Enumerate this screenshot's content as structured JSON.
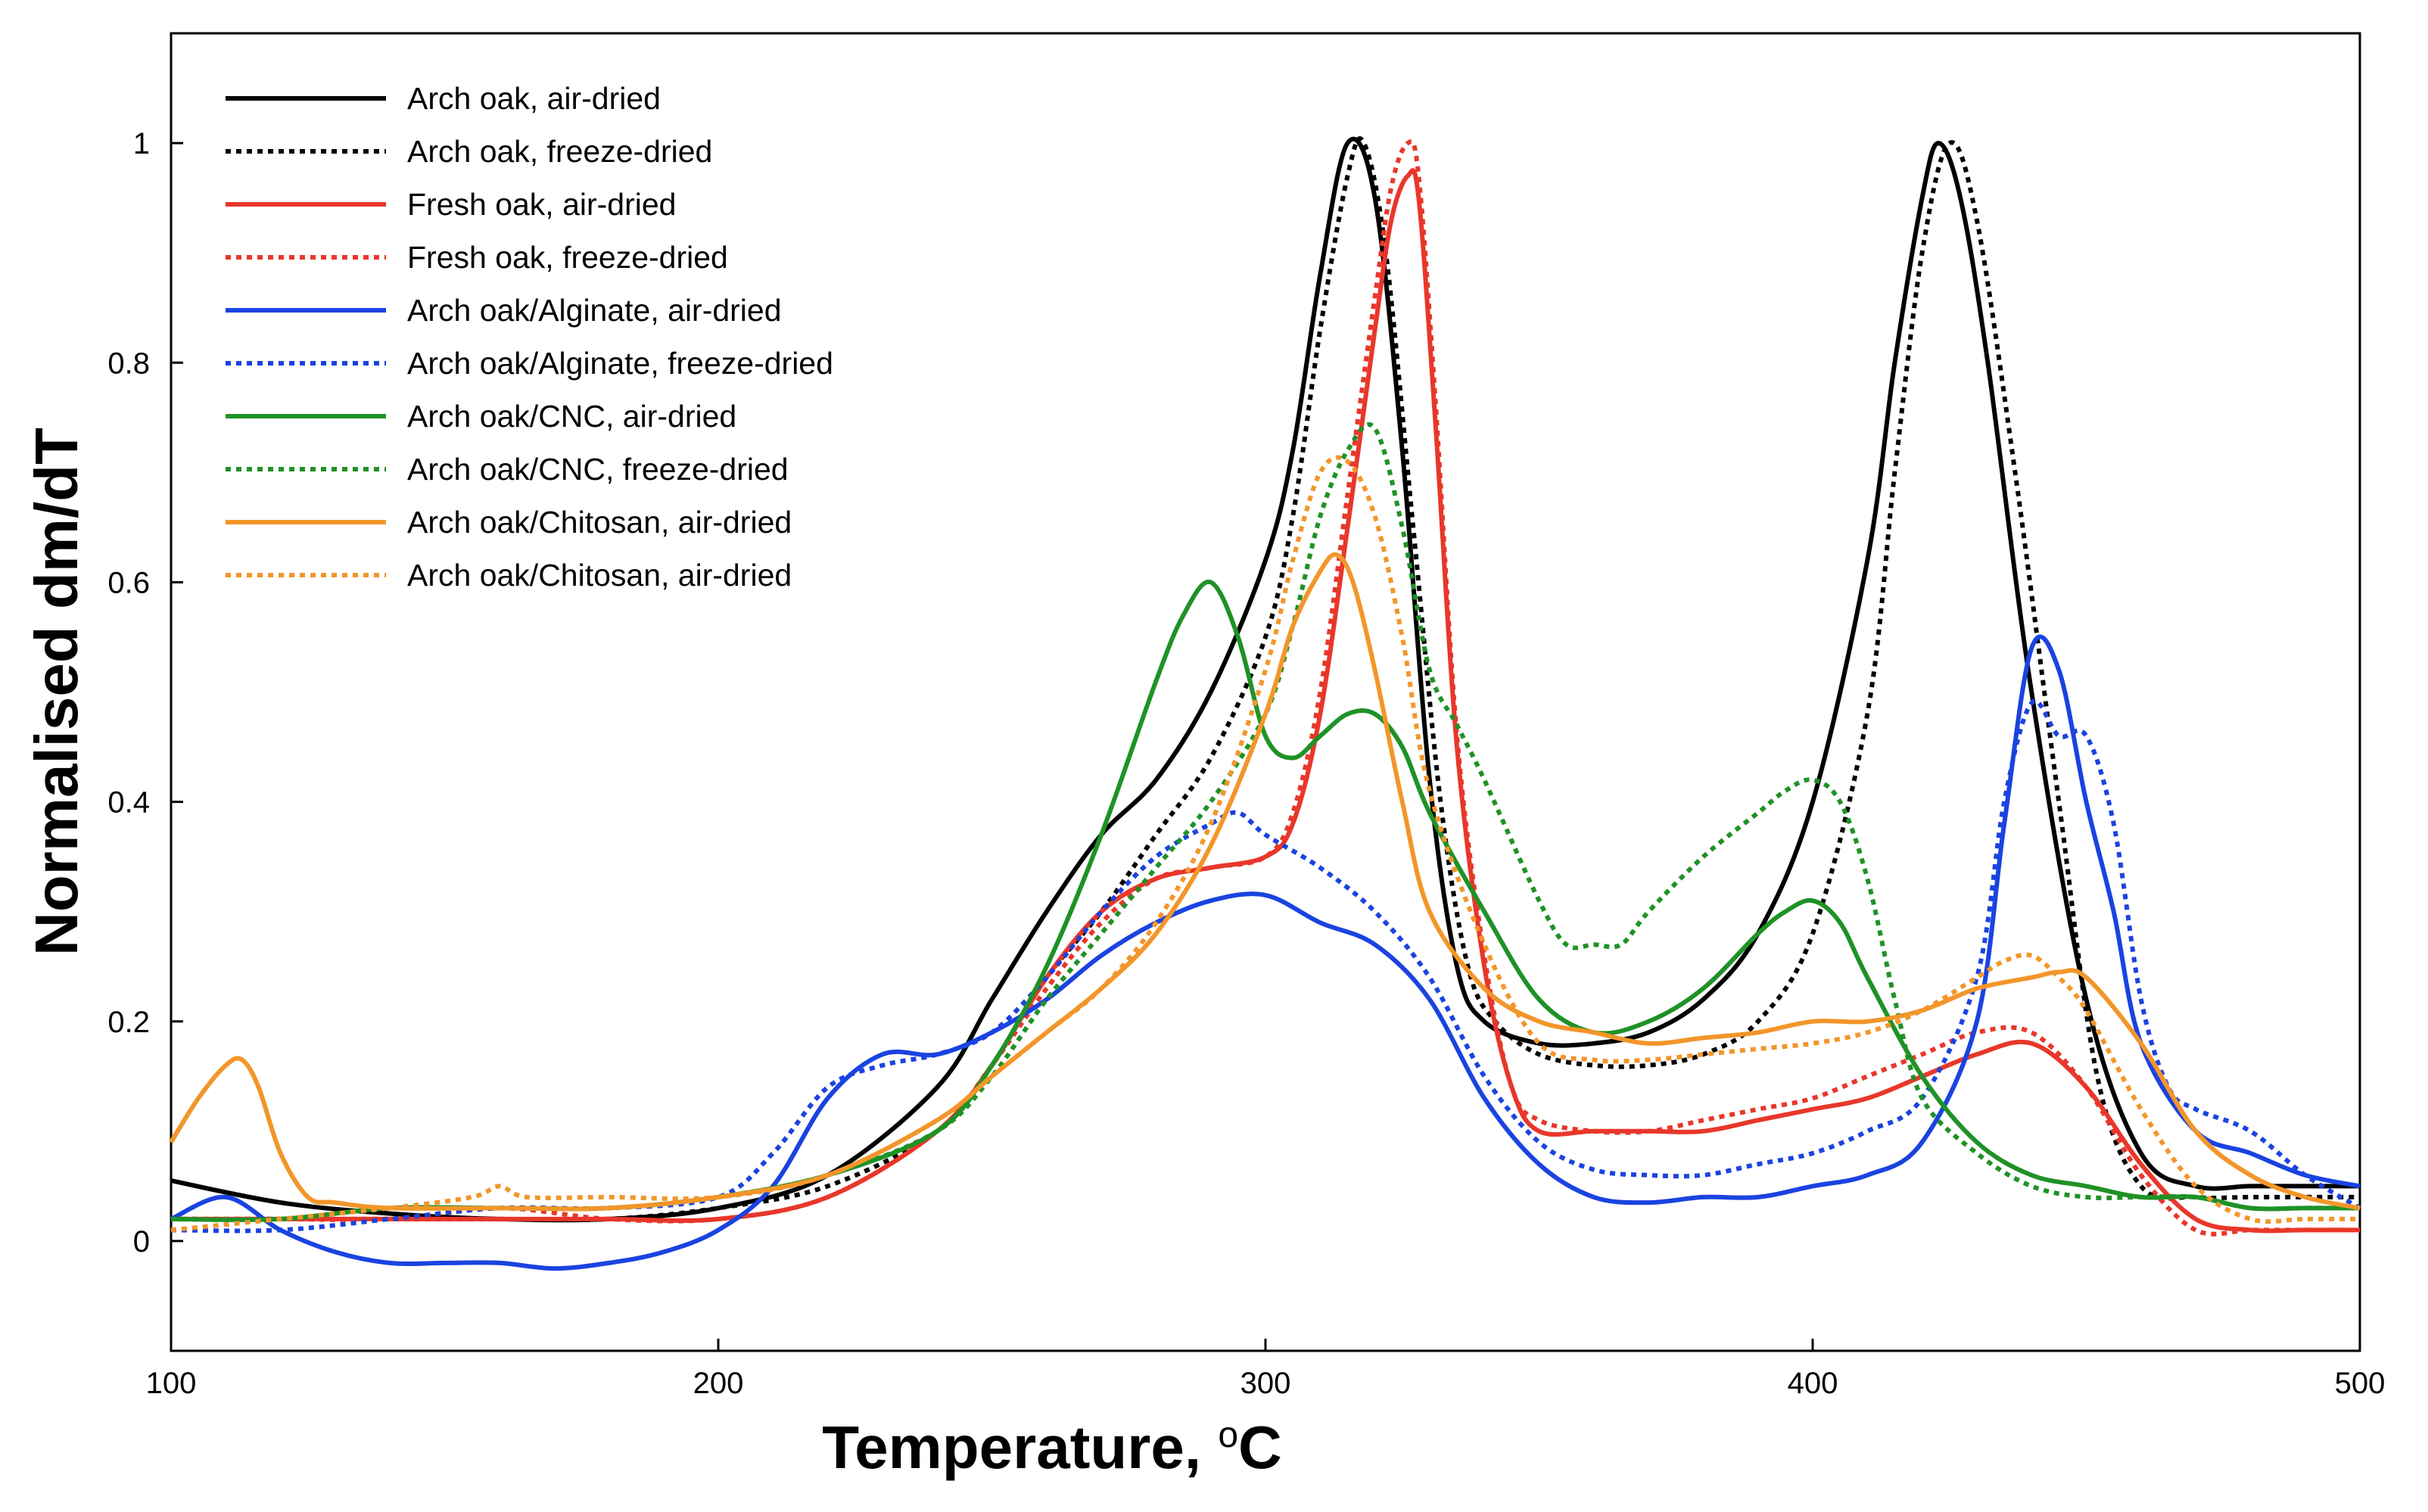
{
  "chart_data": {
    "type": "line",
    "title": "",
    "xlabel": "Temperature, ",
    "xlabel_super": "o",
    "xlabel_unit": "C",
    "ylabel": "Normalised dm/dT",
    "xlim": [
      100,
      500
    ],
    "ylim": [
      -0.1,
      1.1
    ],
    "x_ticks": [
      100,
      200,
      300,
      400,
      500
    ],
    "x_tick_labels": [
      "100",
      "200",
      "300",
      "400",
      "500"
    ],
    "y_ticks": [
      0,
      0.2,
      0.4,
      0.6,
      0.8,
      1
    ],
    "y_tick_labels": [
      "0",
      "0.2",
      "0.4",
      "0.6",
      "0.8",
      "1"
    ],
    "legend_position": "top-left",
    "grid": false,
    "series": [
      {
        "name": "Arch oak, air-dried",
        "color": "#000000",
        "dash": "solid",
        "x": [
          100,
          120,
          140,
          160,
          180,
          200,
          220,
          240,
          250,
          260,
          270,
          280,
          290,
          300,
          305,
          310,
          315,
          320,
          325,
          330,
          335,
          340,
          350,
          360,
          370,
          380,
          390,
          400,
          410,
          415,
          420,
          423,
          427,
          432,
          440,
          450,
          460,
          470,
          480,
          490,
          500
        ],
        "y": [
          0.055,
          0.035,
          0.025,
          0.02,
          0.02,
          0.03,
          0.06,
          0.14,
          0.22,
          0.3,
          0.37,
          0.42,
          0.5,
          0.62,
          0.72,
          0.88,
          1.0,
          0.95,
          0.72,
          0.42,
          0.25,
          0.2,
          0.18,
          0.18,
          0.19,
          0.22,
          0.28,
          0.4,
          0.62,
          0.8,
          0.95,
          1.0,
          0.95,
          0.8,
          0.5,
          0.22,
          0.08,
          0.05,
          0.05,
          0.05,
          0.05
        ]
      },
      {
        "name": "Arch oak, freeze-dried",
        "color": "#000000",
        "dash": "dotted",
        "x": [
          100,
          120,
          140,
          160,
          180,
          200,
          220,
          240,
          250,
          260,
          270,
          280,
          290,
          300,
          305,
          310,
          315,
          318,
          322,
          327,
          332,
          337,
          342,
          350,
          360,
          370,
          380,
          390,
          400,
          410,
          415,
          420,
          425,
          430,
          437,
          445,
          452,
          460,
          470,
          480,
          490,
          500
        ],
        "y": [
          0.02,
          0.02,
          0.02,
          0.02,
          0.02,
          0.03,
          0.05,
          0.1,
          0.16,
          0.24,
          0.3,
          0.37,
          0.44,
          0.55,
          0.66,
          0.83,
          0.97,
          1.0,
          0.9,
          0.65,
          0.4,
          0.25,
          0.2,
          0.17,
          0.16,
          0.16,
          0.17,
          0.2,
          0.28,
          0.48,
          0.7,
          0.9,
          1.0,
          0.93,
          0.7,
          0.4,
          0.15,
          0.05,
          0.04,
          0.04,
          0.04,
          0.04
        ]
      },
      {
        "name": "Fresh oak, air-dried",
        "color": "#e8372a",
        "dash": "solid",
        "x": [
          100,
          120,
          140,
          160,
          180,
          200,
          220,
          240,
          250,
          260,
          270,
          280,
          290,
          300,
          305,
          310,
          315,
          320,
          323,
          326,
          328,
          331,
          335,
          340,
          345,
          350,
          360,
          370,
          380,
          390,
          400,
          410,
          420,
          430,
          440,
          450,
          460,
          470,
          480,
          490,
          500
        ],
        "y": [
          0.02,
          0.02,
          0.02,
          0.02,
          0.02,
          0.02,
          0.04,
          0.1,
          0.16,
          0.24,
          0.3,
          0.33,
          0.34,
          0.35,
          0.38,
          0.48,
          0.65,
          0.83,
          0.93,
          0.97,
          0.95,
          0.75,
          0.45,
          0.25,
          0.14,
          0.1,
          0.1,
          0.1,
          0.1,
          0.11,
          0.12,
          0.13,
          0.15,
          0.17,
          0.18,
          0.14,
          0.07,
          0.02,
          0.01,
          0.01,
          0.01
        ]
      },
      {
        "name": "Fresh oak, freeze-dried",
        "color": "#e8372a",
        "dash": "dotted",
        "x": [
          100,
          120,
          140,
          160,
          180,
          200,
          220,
          240,
          250,
          260,
          270,
          280,
          290,
          300,
          305,
          310,
          315,
          320,
          323,
          326,
          328,
          331,
          335,
          340,
          345,
          350,
          360,
          370,
          380,
          390,
          400,
          410,
          420,
          430,
          440,
          450,
          460,
          470,
          480,
          490,
          500
        ],
        "y": [
          0.02,
          0.02,
          0.02,
          0.03,
          0.02,
          0.02,
          0.04,
          0.1,
          0.16,
          0.23,
          0.29,
          0.33,
          0.34,
          0.35,
          0.39,
          0.5,
          0.68,
          0.86,
          0.96,
          1.0,
          0.97,
          0.77,
          0.46,
          0.26,
          0.14,
          0.11,
          0.1,
          0.1,
          0.11,
          0.12,
          0.13,
          0.15,
          0.17,
          0.19,
          0.19,
          0.14,
          0.06,
          0.01,
          0.01,
          0.01,
          0.01
        ]
      },
      {
        "name": "Arch oak/Alginate, air-dried",
        "color": "#1a43e0",
        "dash": "solid",
        "x": [
          100,
          110,
          120,
          130,
          140,
          150,
          160,
          170,
          180,
          190,
          200,
          210,
          220,
          230,
          240,
          250,
          260,
          270,
          280,
          290,
          300,
          310,
          320,
          330,
          340,
          350,
          360,
          370,
          380,
          390,
          400,
          410,
          420,
          430,
          435,
          440,
          445,
          450,
          455,
          460,
          470,
          480,
          490,
          500
        ],
        "y": [
          0.02,
          0.04,
          0.01,
          -0.01,
          -0.02,
          -0.02,
          -0.02,
          -0.025,
          -0.02,
          -0.01,
          0.01,
          0.05,
          0.13,
          0.17,
          0.17,
          0.19,
          0.22,
          0.26,
          0.29,
          0.31,
          0.315,
          0.29,
          0.27,
          0.22,
          0.13,
          0.07,
          0.04,
          0.035,
          0.04,
          0.04,
          0.05,
          0.06,
          0.09,
          0.2,
          0.38,
          0.54,
          0.52,
          0.4,
          0.3,
          0.18,
          0.1,
          0.08,
          0.06,
          0.05
        ]
      },
      {
        "name": "Arch oak/Alginate, freeze-dried",
        "color": "#1a43e0",
        "dash": "dotted",
        "x": [
          100,
          120,
          140,
          160,
          180,
          200,
          210,
          220,
          230,
          240,
          250,
          260,
          270,
          280,
          290,
          295,
          300,
          310,
          320,
          330,
          340,
          350,
          360,
          370,
          380,
          390,
          400,
          410,
          420,
          430,
          435,
          440,
          445,
          450,
          455,
          460,
          465,
          470,
          480,
          490,
          500
        ],
        "y": [
          0.01,
          0.01,
          0.02,
          0.03,
          0.03,
          0.04,
          0.08,
          0.14,
          0.16,
          0.17,
          0.19,
          0.24,
          0.3,
          0.35,
          0.38,
          0.39,
          0.37,
          0.34,
          0.3,
          0.24,
          0.15,
          0.09,
          0.065,
          0.06,
          0.06,
          0.07,
          0.08,
          0.1,
          0.13,
          0.24,
          0.4,
          0.49,
          0.46,
          0.46,
          0.38,
          0.22,
          0.14,
          0.12,
          0.1,
          0.06,
          0.03
        ]
      },
      {
        "name": "Arch oak/CNC, air-dried",
        "color": "#1f9226",
        "dash": "solid",
        "x": [
          100,
          120,
          140,
          160,
          180,
          200,
          220,
          240,
          250,
          260,
          270,
          280,
          285,
          290,
          295,
          300,
          305,
          310,
          315,
          320,
          325,
          330,
          340,
          350,
          360,
          370,
          380,
          390,
          395,
          400,
          405,
          410,
          420,
          430,
          440,
          450,
          460,
          470,
          480,
          490,
          500
        ],
        "y": [
          0.02,
          0.02,
          0.03,
          0.03,
          0.03,
          0.04,
          0.06,
          0.1,
          0.16,
          0.25,
          0.37,
          0.51,
          0.57,
          0.6,
          0.55,
          0.46,
          0.44,
          0.46,
          0.48,
          0.48,
          0.45,
          0.39,
          0.3,
          0.22,
          0.19,
          0.2,
          0.23,
          0.28,
          0.3,
          0.31,
          0.29,
          0.24,
          0.15,
          0.09,
          0.06,
          0.05,
          0.04,
          0.04,
          0.03,
          0.03,
          0.03
        ]
      },
      {
        "name": "Arch oak/CNC, freeze-dried",
        "color": "#1f9226",
        "dash": "dotted",
        "x": [
          100,
          120,
          140,
          160,
          180,
          200,
          220,
          240,
          250,
          260,
          270,
          280,
          290,
          300,
          305,
          310,
          315,
          320,
          325,
          330,
          335,
          340,
          350,
          355,
          360,
          365,
          370,
          380,
          390,
          395,
          400,
          405,
          410,
          415,
          420,
          430,
          440,
          450,
          460,
          470,
          480,
          490,
          500
        ],
        "y": [
          0.02,
          0.02,
          0.03,
          0.03,
          0.03,
          0.04,
          0.06,
          0.1,
          0.15,
          0.22,
          0.28,
          0.34,
          0.4,
          0.48,
          0.56,
          0.66,
          0.72,
          0.74,
          0.65,
          0.52,
          0.47,
          0.42,
          0.31,
          0.27,
          0.27,
          0.27,
          0.3,
          0.35,
          0.39,
          0.41,
          0.42,
          0.4,
          0.33,
          0.22,
          0.13,
          0.08,
          0.05,
          0.04,
          0.04,
          0.04,
          0.03,
          0.03,
          0.03
        ]
      },
      {
        "name": "Arch oak/Chitosan, air-dried",
        "color": "#f2962a",
        "dash": "solid",
        "x": [
          100,
          105,
          110,
          113,
          116,
          120,
          125,
          130,
          140,
          160,
          180,
          200,
          220,
          240,
          250,
          260,
          270,
          280,
          290,
          300,
          305,
          310,
          313,
          316,
          320,
          325,
          330,
          340,
          350,
          360,
          370,
          380,
          390,
          400,
          410,
          420,
          430,
          440,
          445,
          450,
          460,
          470,
          480,
          490,
          500
        ],
        "y": [
          0.09,
          0.13,
          0.16,
          0.165,
          0.14,
          0.08,
          0.04,
          0.035,
          0.03,
          0.03,
          0.03,
          0.04,
          0.06,
          0.11,
          0.15,
          0.19,
          0.23,
          0.28,
          0.36,
          0.48,
          0.56,
          0.61,
          0.625,
          0.6,
          0.52,
          0.4,
          0.3,
          0.23,
          0.2,
          0.19,
          0.18,
          0.185,
          0.19,
          0.2,
          0.2,
          0.21,
          0.23,
          0.24,
          0.245,
          0.24,
          0.18,
          0.1,
          0.06,
          0.04,
          0.03
        ]
      },
      {
        "name": "Arch oak/Chitosan, air-dried",
        "color": "#f2962a",
        "dash": "dotted",
        "x": [
          100,
          120,
          140,
          155,
          160,
          165,
          180,
          200,
          220,
          240,
          250,
          260,
          270,
          280,
          290,
          300,
          305,
          310,
          315,
          320,
          325,
          330,
          340,
          350,
          360,
          370,
          380,
          390,
          400,
          410,
          420,
          430,
          435,
          440,
          445,
          450,
          460,
          470,
          480,
          490,
          500
        ],
        "y": [
          0.01,
          0.02,
          0.03,
          0.04,
          0.05,
          0.04,
          0.04,
          0.04,
          0.06,
          0.11,
          0.15,
          0.19,
          0.23,
          0.29,
          0.38,
          0.52,
          0.62,
          0.7,
          0.71,
          0.66,
          0.55,
          0.41,
          0.27,
          0.18,
          0.165,
          0.165,
          0.17,
          0.175,
          0.18,
          0.19,
          0.21,
          0.24,
          0.255,
          0.26,
          0.24,
          0.21,
          0.12,
          0.05,
          0.02,
          0.02,
          0.02
        ]
      }
    ]
  }
}
